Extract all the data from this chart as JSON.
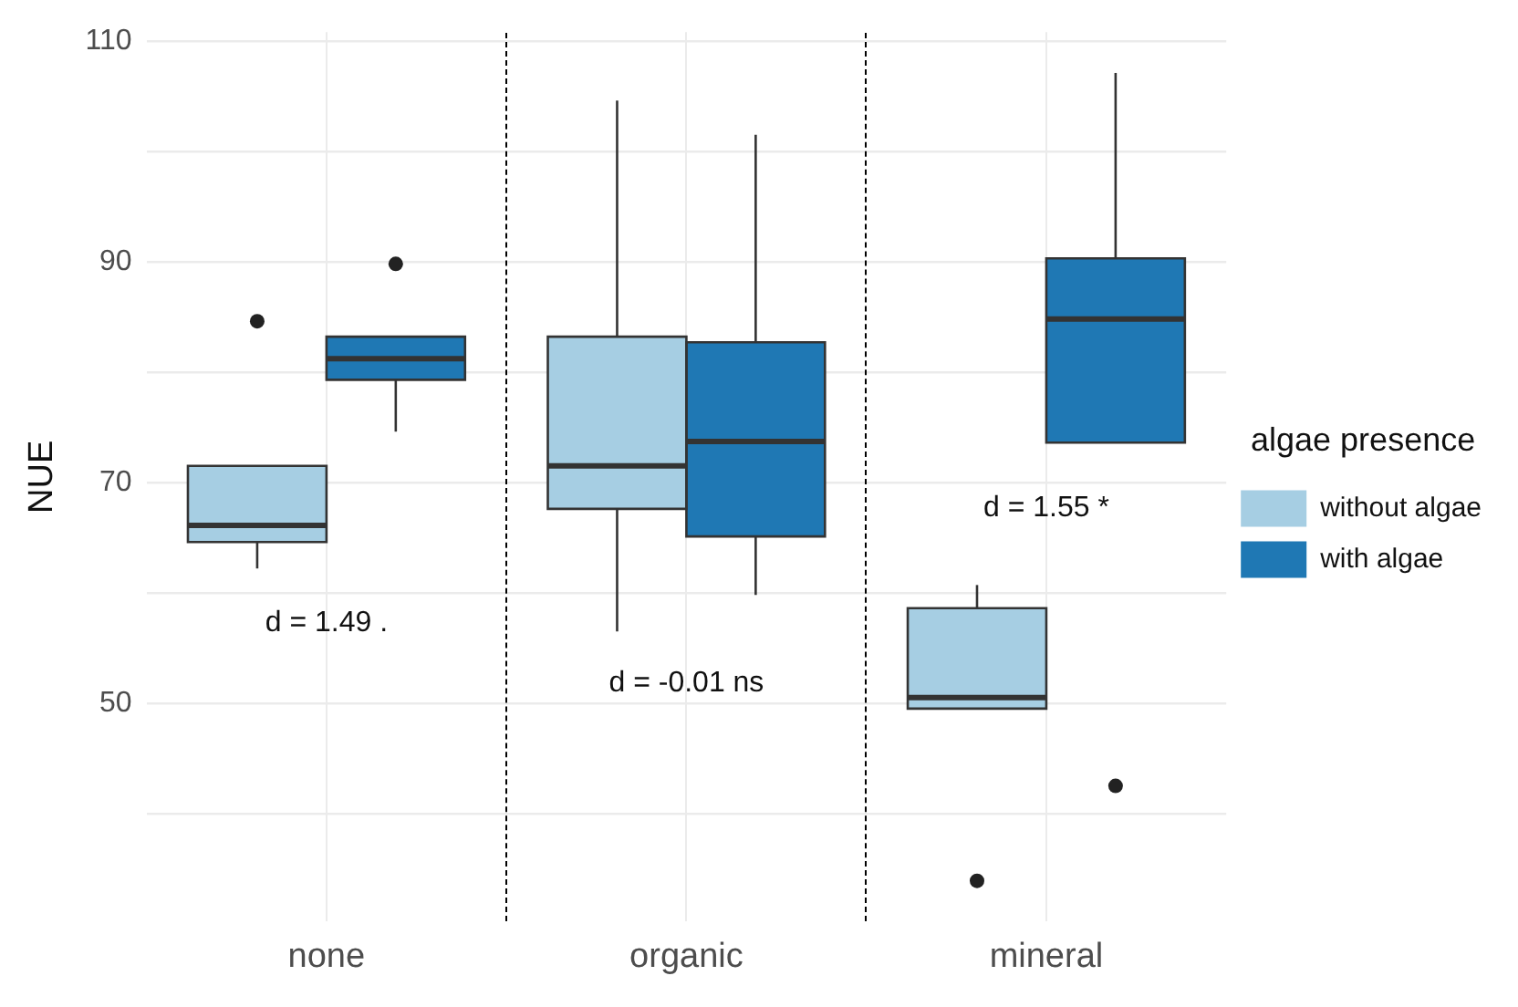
{
  "chart_data": {
    "type": "box",
    "ylabel": "NUE",
    "legend_title": "algae presence",
    "categories": [
      "none",
      "organic",
      "mineral"
    ],
    "ylim": [
      30.2,
      110.8
    ],
    "yticks": [
      {
        "value": 40,
        "label": null
      },
      50,
      {
        "value": 60,
        "label": null
      },
      70,
      {
        "value": 80,
        "label": null
      },
      90,
      {
        "value": 100,
        "label": null
      },
      110
    ],
    "grid": true,
    "legend": "right",
    "series": [
      {
        "name": "without algae",
        "color": "#a6cee3",
        "boxes": [
          {
            "low": 62.2,
            "q1": 64.6,
            "median": 66.1,
            "q3": 71.5,
            "high": 71.5,
            "outliers": [
              84.6
            ]
          },
          {
            "low": 56.5,
            "q1": 67.6,
            "median": 71.5,
            "q3": 83.2,
            "high": 104.6
          },
          {
            "low": 49.5,
            "q1": 49.5,
            "median": 50.5,
            "q3": 58.6,
            "high": 60.7,
            "outliers": [
              33.9
            ]
          }
        ]
      },
      {
        "name": "with algae",
        "color": "#1f78b4",
        "boxes": [
          {
            "low": 74.6,
            "q1": 79.3,
            "median": 81.2,
            "q3": 83.2,
            "high": 83.2,
            "outliers": [
              89.8
            ]
          },
          {
            "low": 59.8,
            "q1": 65.1,
            "median": 73.7,
            "q3": 82.7,
            "high": 101.5
          },
          {
            "low": 73.6,
            "q1": 73.6,
            "median": 84.8,
            "q3": 90.3,
            "high": 107.1,
            "outliers": [
              42.5
            ]
          }
        ]
      }
    ],
    "annotations": [
      "d = 1.49 .",
      "d = -0.01 ns",
      "d = 1.55 *"
    ]
  }
}
